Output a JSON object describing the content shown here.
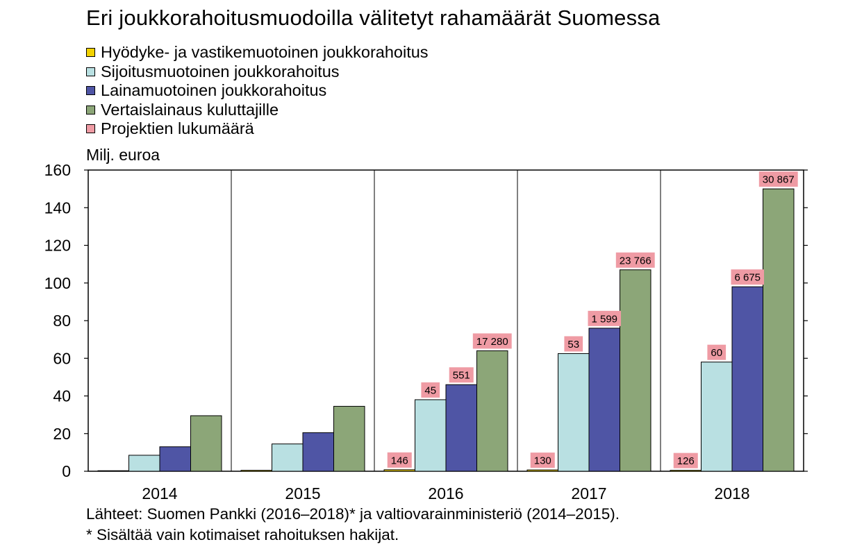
{
  "chart_data": {
    "type": "bar",
    "title": "Eri joukkorahoitusmuodoilla välitetyt rahamäärät Suomessa",
    "ylabel": "Milj. euroa",
    "ylim": [
      0,
      160
    ],
    "yticks": [
      0,
      20,
      40,
      60,
      80,
      100,
      120,
      140,
      160
    ],
    "grid": "vertical lines between categories",
    "legend_placement": "top-left",
    "categories": [
      "2014",
      "2015",
      "2016",
      "2017",
      "2018"
    ],
    "series": [
      {
        "name": "Hyödyke- ja vastikemuotoinen joukkorahoitus",
        "color": "#f2d200",
        "values": [
          0.1,
          0.5,
          0.8,
          0.7,
          0.5
        ],
        "project_counts": [
          null,
          null,
          "146",
          "130",
          "126"
        ]
      },
      {
        "name": "Sijoitusmuotoinen joukkorahoitus",
        "color": "#b9e0e2",
        "values": [
          8.5,
          14.5,
          38,
          62.5,
          58
        ],
        "project_counts": [
          null,
          null,
          "45",
          "53",
          "60"
        ]
      },
      {
        "name": "Lainamuotoinen joukkorahoitus",
        "color": "#4f55a5",
        "values": [
          13,
          20.5,
          46,
          76,
          98
        ],
        "project_counts": [
          null,
          null,
          "551",
          "1 599",
          "6 675"
        ]
      },
      {
        "name": "Vertaislainaus kuluttajille",
        "color": "#8ca678",
        "values": [
          29.5,
          34.5,
          64,
          107,
          150
        ],
        "project_counts": [
          null,
          null,
          "17 280",
          "23 766",
          "30 867"
        ]
      }
    ],
    "count_legend": {
      "name": "Projektien lukumäärä",
      "color": "#ef9ba4"
    }
  },
  "source": {
    "line1": "Lähteet: Suomen Pankki (2016–2018)* ja valtiovarainministeriö (2014–2015).",
    "line2": "* Sisältää vain kotimaiset rahoituksen hakijat."
  }
}
